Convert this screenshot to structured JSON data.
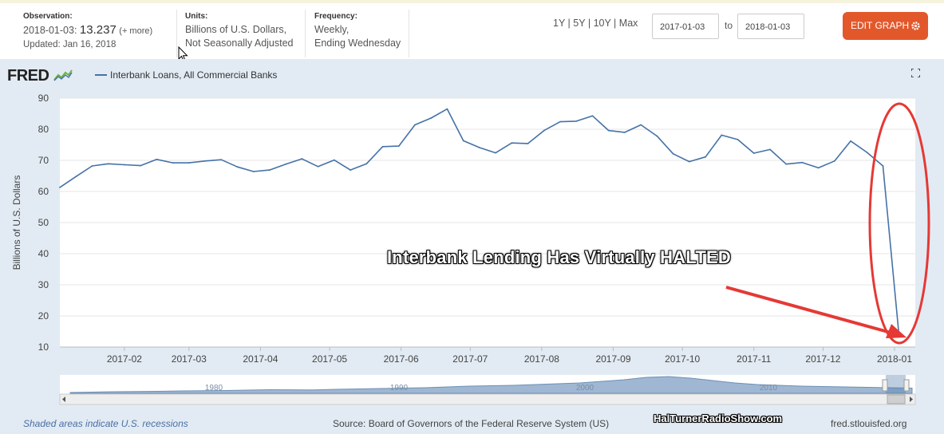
{
  "header": {
    "observation_label": "Observation:",
    "observation_date": "2018-01-03:",
    "observation_value": "13.237",
    "observation_more": "(+ more)",
    "updated": "Updated: Jan 16, 2018",
    "units_label": "Units:",
    "units_line1": "Billions of U.S. Dollars,",
    "units_line2": "Not Seasonally Adjusted",
    "frequency_label": "Frequency:",
    "frequency_line1": "Weekly,",
    "frequency_line2": "Ending Wednesday",
    "range_buttons": [
      "1Y",
      "5Y",
      "10Y",
      "Max"
    ],
    "range_separator": " | ",
    "start_date": "2017-01-03",
    "to_label": "to",
    "end_date": "2018-01-03",
    "edit_button": "EDIT GRAPH",
    "accent_color": "#e2582b"
  },
  "logo": {
    "text": "FRED"
  },
  "footer": {
    "recessions_note": "Shaded areas indicate U.S. recessions",
    "source": "Source: Board of Governors of the Federal Reserve System (US)",
    "watermark": "HalTurnerRadioShow.com",
    "url": "fred.stlouisfed.org"
  },
  "annotation": {
    "text": "Interbank Lending Has Virtually HALTED",
    "color": "#e53935"
  },
  "navigator": {
    "labels": [
      "1980",
      "1990",
      "2000",
      "2010"
    ]
  },
  "chart_data": {
    "type": "line",
    "ylabel": "Billions of U.S. Dollars",
    "ylim": [
      10,
      90
    ],
    "yticks": [
      10,
      20,
      30,
      40,
      50,
      60,
      70,
      80,
      90
    ],
    "xlim": [
      "2017-01-04",
      "2018-01-10"
    ],
    "xticks": [
      "2017-02",
      "2017-03",
      "2017-04",
      "2017-05",
      "2017-06",
      "2017-07",
      "2017-08",
      "2017-09",
      "2017-10",
      "2017-11",
      "2017-12",
      "2018-01"
    ],
    "grid": "horizontal",
    "legend": "top-left",
    "series": [
      {
        "name": "Interbank Loans, All Commercial Banks",
        "color": "#4572a7",
        "x": [
          "2017-01-04",
          "2017-01-11",
          "2017-01-18",
          "2017-01-25",
          "2017-02-01",
          "2017-02-08",
          "2017-02-15",
          "2017-02-22",
          "2017-03-01",
          "2017-03-08",
          "2017-03-15",
          "2017-03-22",
          "2017-03-29",
          "2017-04-05",
          "2017-04-12",
          "2017-04-19",
          "2017-04-26",
          "2017-05-03",
          "2017-05-10",
          "2017-05-17",
          "2017-05-24",
          "2017-05-31",
          "2017-06-07",
          "2017-06-14",
          "2017-06-21",
          "2017-06-28",
          "2017-07-05",
          "2017-07-12",
          "2017-07-19",
          "2017-07-26",
          "2017-08-02",
          "2017-08-09",
          "2017-08-16",
          "2017-08-23",
          "2017-08-30",
          "2017-09-06",
          "2017-09-13",
          "2017-09-20",
          "2017-09-27",
          "2017-10-04",
          "2017-10-11",
          "2017-10-18",
          "2017-10-25",
          "2017-11-01",
          "2017-11-08",
          "2017-11-15",
          "2017-11-22",
          "2017-11-29",
          "2017-12-06",
          "2017-12-13",
          "2017-12-20",
          "2017-12-27",
          "2018-01-03"
        ],
        "values": [
          61.3,
          64.8,
          68.2,
          68.9,
          68.6,
          68.3,
          70.3,
          69.2,
          69.2,
          69.8,
          70.2,
          67.9,
          66.4,
          66.9,
          68.8,
          70.5,
          68.0,
          70.1,
          66.9,
          68.9,
          74.4,
          74.6,
          81.4,
          83.6,
          86.5,
          76.3,
          74.1,
          72.4,
          75.6,
          75.4,
          79.6,
          82.4,
          82.6,
          84.3,
          79.6,
          79.0,
          81.4,
          77.8,
          72.1,
          69.6,
          71.1,
          78.1,
          76.7,
          72.3,
          73.5,
          68.8,
          69.3,
          67.6,
          69.8,
          76.2,
          72.6,
          68.2,
          13.237
        ]
      }
    ]
  }
}
